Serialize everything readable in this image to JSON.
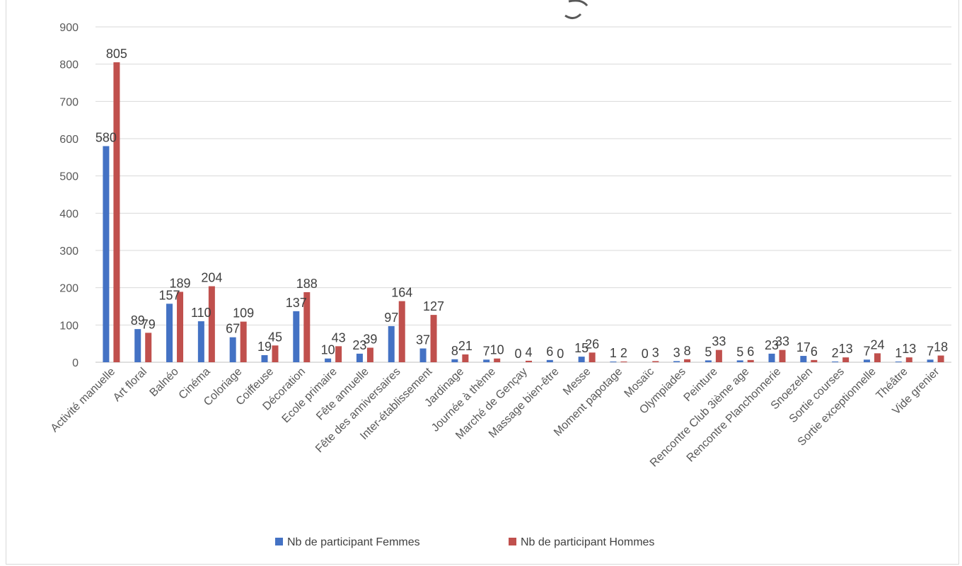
{
  "chart_data": {
    "type": "bar",
    "title": "",
    "xlabel": "",
    "ylabel": "",
    "ylim": [
      0,
      900
    ],
    "yticks": [
      "0",
      "100",
      "200",
      "300",
      "400",
      "500",
      "600",
      "700",
      "800",
      "900"
    ],
    "grid": true,
    "legend_position": "bottom",
    "categories": [
      "Activité manuelle",
      "Art floral",
      "Balnéo",
      "Cinéma",
      "Coloriage",
      "Coiffeuse",
      "Décoration",
      "Ecole primaire",
      "Fête annuelle",
      "Fête des anniversaires",
      "Inter-établissement",
      "Jardinage",
      "Journée à thème",
      "Marché de Gençay",
      "Massage bien-être",
      "Messe",
      "Moment papotage",
      "Mosaïc",
      "Olympiades",
      "Peinture",
      "Rencontre Club 3ième age",
      "Rencontre Planchonnerie",
      "Snoezelen",
      "Sortie courses",
      "Sortie exceptionnelle",
      "Théâtre",
      "Vide grenier"
    ],
    "series": [
      {
        "name": "Nb de participant Femmes",
        "color": "#4472c4",
        "values": [
          580,
          89,
          157,
          110,
          67,
          19,
          137,
          10,
          23,
          97,
          37,
          8,
          7,
          0,
          6,
          15,
          1,
          0,
          3,
          5,
          5,
          23,
          17,
          2,
          7,
          1,
          7
        ]
      },
      {
        "name": "Nb de participant Hommes",
        "color": "#c0504d",
        "values": [
          805,
          79,
          189,
          204,
          109,
          45,
          188,
          43,
          39,
          164,
          127,
          21,
          10,
          4,
          0,
          26,
          2,
          3,
          8,
          33,
          6,
          33,
          6,
          13,
          24,
          13,
          18
        ]
      }
    ]
  }
}
